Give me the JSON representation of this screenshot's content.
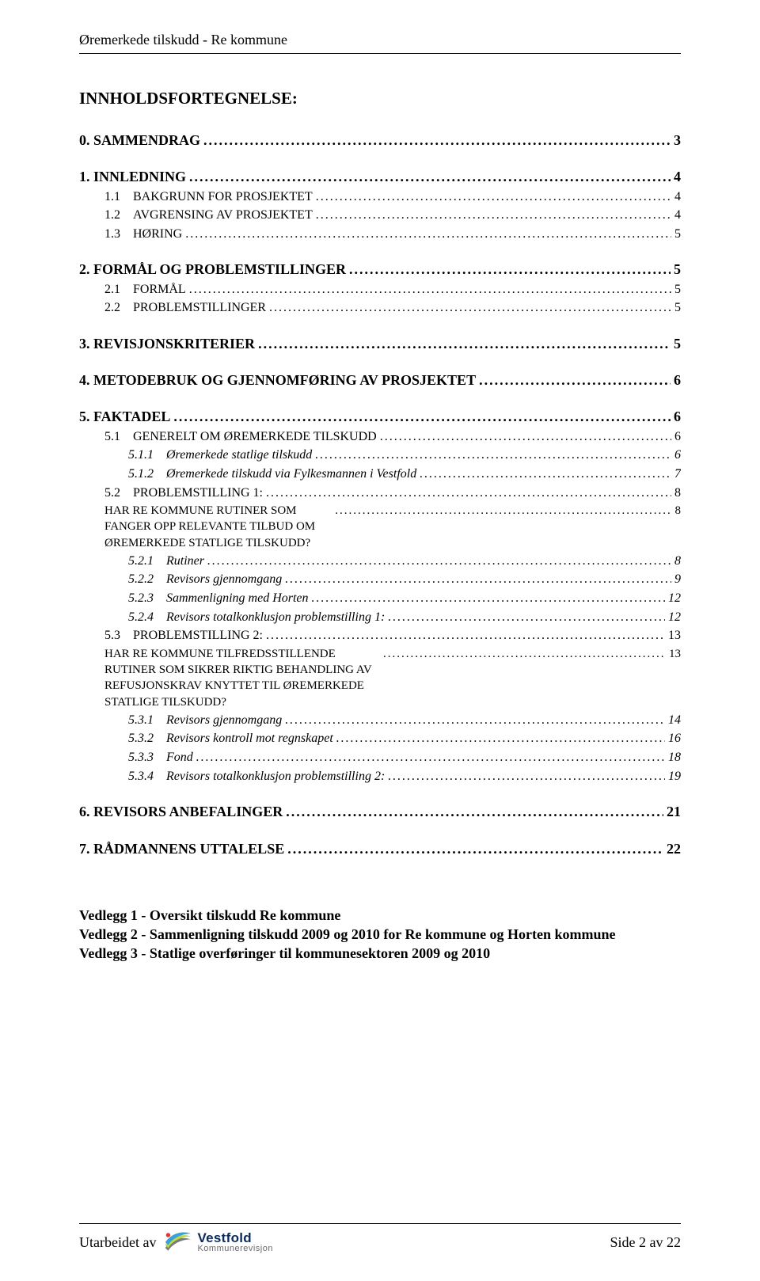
{
  "header": {
    "title": "Øremerkede tilskudd - Re kommune"
  },
  "toc": {
    "heading": "INNHOLDSFORTEGNELSE:",
    "entries": [
      {
        "level": "lvl0",
        "num": "0.",
        "label": "SAMMENDRAG",
        "page": "3"
      },
      {
        "level": "lvl0",
        "num": "1.",
        "label": "INNLEDNING",
        "page": "4"
      },
      {
        "level": "lvl1",
        "num": "1.1",
        "label": "BAKGRUNN FOR PROSJEKTET",
        "page": "4",
        "sc": true
      },
      {
        "level": "lvl1",
        "num": "1.2",
        "label": "AVGRENSING AV PROSJEKTET",
        "page": "4",
        "sc": true
      },
      {
        "level": "lvl1",
        "num": "1.3",
        "label": "HØRING",
        "page": "5",
        "sc": true
      },
      {
        "level": "lvl0",
        "num": "2.",
        "label": "FORMÅL OG PROBLEMSTILLINGER",
        "page": "5"
      },
      {
        "level": "lvl1",
        "num": "2.1",
        "label": "FORMÅL",
        "page": "5",
        "sc": true
      },
      {
        "level": "lvl1",
        "num": "2.2",
        "label": "PROBLEMSTILLINGER",
        "page": "5",
        "sc": true
      },
      {
        "level": "lvl0",
        "num": "3.",
        "label": "REVISJONSKRITERIER",
        "page": "5"
      },
      {
        "level": "lvl0",
        "num": "4.",
        "label": "METODEBRUK OG GJENNOMFØRING AV PROSJEKTET",
        "page": "6"
      },
      {
        "level": "lvl0",
        "num": "5.",
        "label": "FAKTADEL",
        "page": "6"
      },
      {
        "level": "lvl1",
        "num": "5.1",
        "label": "GENERELT OM ØREMERKEDE TILSKUDD",
        "page": "6",
        "sc": true
      },
      {
        "level": "lvl2",
        "num": "5.1.1",
        "label": "Øremerkede statlige tilskudd",
        "page": "6"
      },
      {
        "level": "lvl2",
        "num": "5.1.2",
        "label": "Øremerkede tilskudd via Fylkesmannen i Vestfold",
        "page": "7"
      },
      {
        "level": "lvl1",
        "num": "5.2",
        "label": "PROBLEMSTILLING 1:",
        "page": "8",
        "sc": true
      },
      {
        "level": "lvl1sc",
        "num": "",
        "label": "HAR RE KOMMUNE RUTINER SOM FANGER OPP RELEVANTE TILBUD OM ØREMERKEDE STATLIGE TILSKUDD?",
        "page": "8",
        "sc": true
      },
      {
        "level": "lvl2",
        "num": "5.2.1",
        "label": "Rutiner",
        "page": "8"
      },
      {
        "level": "lvl2",
        "num": "5.2.2",
        "label": "Revisors gjennomgang",
        "page": "9"
      },
      {
        "level": "lvl2",
        "num": "5.2.3",
        "label": "Sammenligning med Horten",
        "page": "12"
      },
      {
        "level": "lvl2",
        "num": "5.2.4",
        "label": "Revisors totalkonklusjon problemstilling 1:",
        "page": "12"
      },
      {
        "level": "lvl1",
        "num": "5.3",
        "label": "PROBLEMSTILLING 2:",
        "page": "13",
        "sc": true
      },
      {
        "level": "lvl1sc",
        "num": "",
        "label": "HAR RE KOMMUNE TILFREDSSTILLENDE RUTINER SOM SIKRER RIKTIG BEHANDLING AV REFUSJONSKRAV KNYTTET TIL ØREMERKEDE STATLIGE TILSKUDD?",
        "page": "13",
        "sc": true
      },
      {
        "level": "lvl2",
        "num": "5.3.1",
        "label": "Revisors gjennomgang",
        "page": "14"
      },
      {
        "level": "lvl2",
        "num": "5.3.2",
        "label": "Revisors kontroll mot regnskapet",
        "page": "16"
      },
      {
        "level": "lvl2",
        "num": "5.3.3",
        "label": "Fond",
        "page": "18"
      },
      {
        "level": "lvl2",
        "num": "5.3.4",
        "label": "Revisors totalkonklusjon problemstilling 2:",
        "page": "19"
      },
      {
        "level": "lvl0",
        "num": "6.",
        "label": "REVISORS ANBEFALINGER",
        "page": "21"
      },
      {
        "level": "lvl0",
        "num": "7.",
        "label": "RÅDMANNENS UTTALELSE",
        "page": "22"
      }
    ]
  },
  "attachments": {
    "lines": [
      "Vedlegg 1 - Oversikt tilskudd Re kommune",
      "Vedlegg 2 - Sammenligning tilskudd 2009 og 2010 for Re kommune og Horten kommune",
      "Vedlegg 3 - Statlige overføringer til kommunesektoren 2009 og 2010"
    ]
  },
  "footer": {
    "left_label": "Utarbeidet av",
    "logo": {
      "top": "Vestfold",
      "bottom": "Kommunerevisjon"
    },
    "right_label": "Side 2 av 22",
    "colors": {
      "swoosh1": "#3aa0d8",
      "swoosh2": "#b9d94a",
      "swoosh3": "#7a7a7a",
      "dot": "#d83a3a",
      "brand_text": "#0a2a5a",
      "sub_text": "#6a6a6a"
    }
  }
}
